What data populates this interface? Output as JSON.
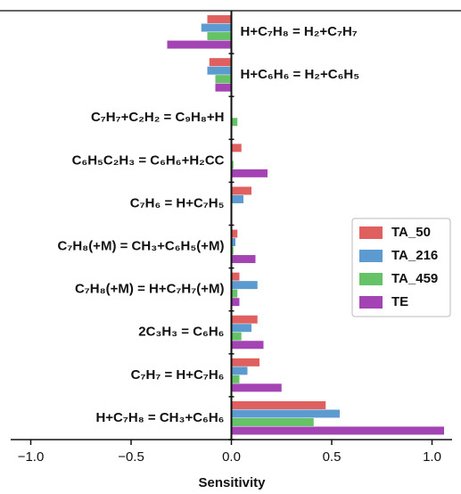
{
  "chart_data": {
    "type": "barh",
    "xlabel": "Sensitivity",
    "categories": [
      "H+C₇H₈ = H₂+C₇H₇",
      "H+C₆H₆ = H₂+C₆H₅",
      "C₇H₇+C₂H₂ = C₉H₈+H",
      "C₆H₅C₂H₃ = C₆H₆+H₂CC",
      "C₇H₆ = H+C₇H₅",
      "C₇H₈(+M) = CH₃+C₆H₅(+M)",
      "C₇H₈(+M) = H+C₇H₇(+M)",
      "2C₃H₃ = C₆H₆",
      "C₇H₇ = H+C₇H₆",
      "H+C₇H₈ = CH₃+C₆H₆"
    ],
    "series": [
      {
        "name": "TA_50",
        "color": "#e06060",
        "values": [
          -0.12,
          -0.11,
          0,
          0.05,
          0.1,
          0.03,
          0.04,
          0.13,
          0.14,
          0.47
        ]
      },
      {
        "name": "TA_216",
        "color": "#5b9bd0",
        "values": [
          -0.15,
          -0.12,
          0,
          0,
          0.06,
          0.02,
          0.13,
          0.1,
          0.08,
          0.54
        ]
      },
      {
        "name": "TA_459",
        "color": "#66c266",
        "values": [
          -0.12,
          -0.08,
          0.03,
          0.01,
          0,
          0.01,
          0.03,
          0.05,
          0.04,
          0.41
        ]
      },
      {
        "name": "TE",
        "color": "#a444b4",
        "values": [
          -0.32,
          -0.08,
          0,
          0.18,
          0,
          0.12,
          0.04,
          0.16,
          0.25,
          1.06
        ]
      }
    ],
    "xlim": [
      -1.1,
      1.1
    ],
    "xticks": [
      {
        "value": -1.0,
        "label": "−1.0"
      },
      {
        "value": -0.5,
        "label": "−0.5"
      },
      {
        "value": 0,
        "label": "0.0"
      },
      {
        "value": 0.5,
        "label": "0.5"
      },
      {
        "value": 1.0,
        "label": "1.0"
      }
    ],
    "legend": "right"
  }
}
